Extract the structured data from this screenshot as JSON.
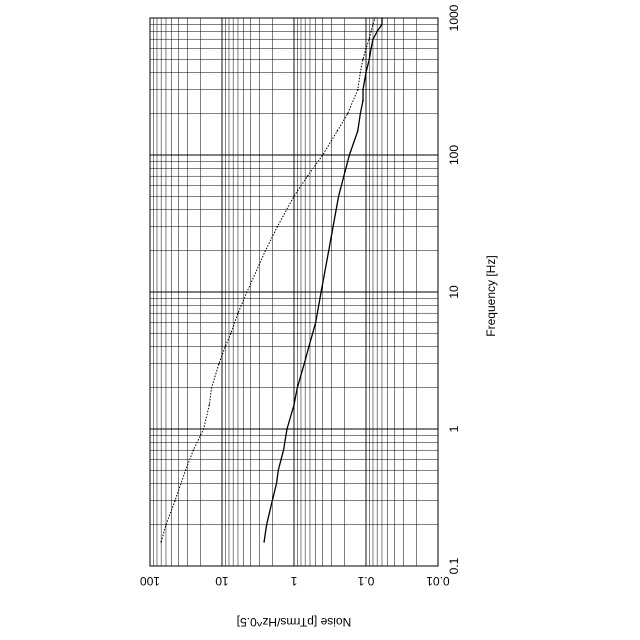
{
  "chart_data": {
    "type": "line",
    "orientation": "rotated-90-clockwise",
    "xlabel": "Frequency [Hz]",
    "ylabel": "Noise [pTrms/Hz^0.5]",
    "xscale": "log",
    "yscale": "log",
    "xlim": [
      0.1,
      1000
    ],
    "ylim": [
      0.01,
      100
    ],
    "grid": true,
    "x_tick_labels": [
      "0.1",
      "1",
      "10",
      "100",
      "1000"
    ],
    "y_tick_labels": [
      "0.01",
      "0.1",
      "1",
      "10",
      "100"
    ],
    "series": [
      {
        "style": "solid",
        "x": [
          0.15,
          0.2,
          0.3,
          0.4,
          0.5,
          0.7,
          1,
          1.5,
          2,
          3,
          4,
          5,
          6,
          10,
          20,
          50,
          100,
          150,
          200,
          250,
          300,
          400,
          500,
          600,
          700,
          800,
          900,
          1000
        ],
        "y": [
          2.6,
          2.4,
          2.0,
          1.75,
          1.65,
          1.4,
          1.25,
          1.0,
          0.9,
          0.72,
          0.62,
          0.55,
          0.5,
          0.42,
          0.33,
          0.24,
          0.17,
          0.13,
          0.12,
          0.11,
          0.11,
          0.1,
          0.09,
          0.085,
          0.08,
          0.07,
          0.06,
          0.06
        ]
      },
      {
        "style": "dotted",
        "x": [
          0.15,
          0.2,
          0.3,
          0.5,
          0.7,
          1,
          1.5,
          2,
          3,
          4,
          5,
          7,
          10,
          20,
          30,
          50,
          70,
          100,
          150,
          200,
          300,
          400,
          500,
          600,
          700,
          800,
          900,
          1000
        ],
        "y": [
          70,
          60,
          45,
          32,
          25,
          18,
          15,
          14,
          11,
          9,
          7.5,
          6,
          4.5,
          2.5,
          1.7,
          1.0,
          0.65,
          0.4,
          0.25,
          0.18,
          0.13,
          0.12,
          0.11,
          0.1,
          0.09,
          0.085,
          0.08,
          0.075
        ]
      }
    ]
  }
}
